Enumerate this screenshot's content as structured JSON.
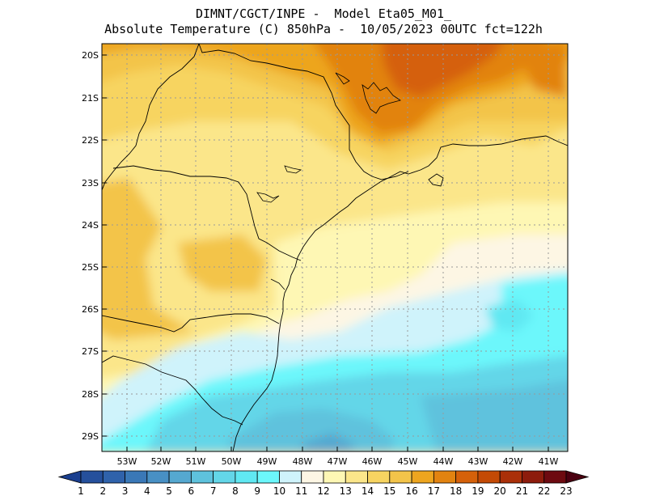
{
  "title": {
    "line1": "DIMNT/CGCT/INPE -  Model Eta05_M01_",
    "line2": "Absolute Temperature (C) 850hPa -  10/05/2023 00UTC fct=122h"
  },
  "map": {
    "lat_labels": [
      "20S",
      "21S",
      "22S",
      "23S",
      "24S",
      "25S",
      "26S",
      "27S",
      "28S",
      "29S"
    ],
    "lon_labels": [
      "53W",
      "52W",
      "51W",
      "50W",
      "49W",
      "48W",
      "47W",
      "46W",
      "45W",
      "44W",
      "43W",
      "42W",
      "41W"
    ],
    "colorbar": {
      "labels": [
        "1",
        "2",
        "3",
        "4",
        "5",
        "6",
        "7",
        "8",
        "9",
        "10",
        "11",
        "12",
        "13",
        "14",
        "15",
        "16",
        "17",
        "18",
        "19",
        "20",
        "21",
        "22",
        "23"
      ],
      "colors": [
        "#1a3f8f",
        "#25509c",
        "#2f62ab",
        "#3a78b7",
        "#4890c4",
        "#55a8d0",
        "#5ec2dd",
        "#63d6e8",
        "#60e8f2",
        "#6cf7fb",
        "#cff3fb",
        "#fdf6e4",
        "#fef7b4",
        "#fbe68a",
        "#f7d461",
        "#f3c44a",
        "#eda51f",
        "#e28310",
        "#d5610a",
        "#c44a05",
        "#aa3009",
        "#8d1c0c",
        "#6d0a10",
        "#4a0010"
      ]
    }
  }
}
